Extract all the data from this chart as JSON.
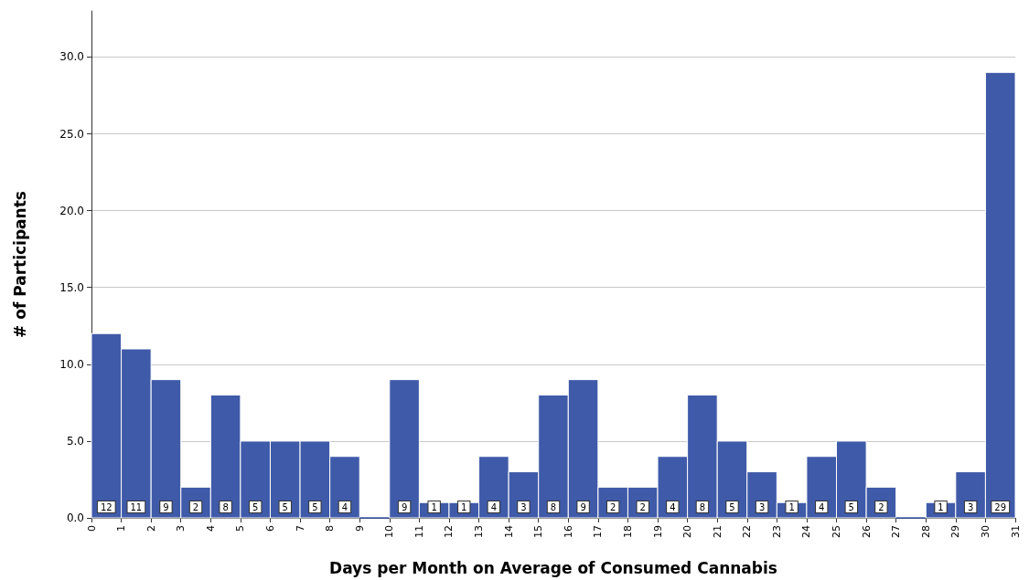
{
  "chart_data": {
    "type": "histogram",
    "xlabel": "Days per Month on Average of Consumed Cannabis",
    "ylabel": "# of Participants",
    "bins": [
      0,
      1,
      2,
      3,
      4,
      5,
      6,
      7,
      8,
      9,
      10,
      11,
      12,
      13,
      14,
      15,
      16,
      17,
      18,
      19,
      20,
      21,
      22,
      23,
      24,
      25,
      26,
      27,
      28,
      29,
      30,
      31
    ],
    "values": [
      12,
      11,
      9,
      2,
      8,
      5,
      5,
      5,
      4,
      0,
      9,
      1,
      1,
      4,
      3,
      8,
      9,
      2,
      2,
      4,
      8,
      5,
      3,
      1,
      4,
      5,
      2,
      0,
      1,
      3,
      29
    ],
    "value_labels": [
      "12",
      "11",
      "9",
      "2",
      "8",
      "5",
      "5",
      "5",
      "4",
      null,
      "9",
      "1",
      "1",
      "4",
      "3",
      "8",
      "9",
      "2",
      "2",
      "4",
      "8",
      "5",
      "3",
      "1",
      "4",
      "5",
      "2",
      null,
      "1",
      "3",
      "29"
    ],
    "color": "#3f5aa8",
    "xlim": [
      0,
      31
    ],
    "xticks": [
      0,
      1,
      2,
      3,
      4,
      5,
      6,
      7,
      8,
      9,
      10,
      11,
      12,
      13,
      14,
      15,
      16,
      17,
      18,
      19,
      20,
      21,
      22,
      23,
      24,
      25,
      26,
      27,
      28,
      29,
      30,
      31
    ],
    "ylim": [
      0,
      33
    ],
    "yticks": [
      {
        "value": 0,
        "label": "0.0"
      },
      {
        "value": 5,
        "label": "5.0"
      },
      {
        "value": 10,
        "label": "10.0"
      },
      {
        "value": 15,
        "label": "15.0"
      },
      {
        "value": 20,
        "label": "20.0"
      },
      {
        "value": 25,
        "label": "25.0"
      },
      {
        "value": 30,
        "label": "30.0"
      }
    ],
    "grid": "y"
  }
}
